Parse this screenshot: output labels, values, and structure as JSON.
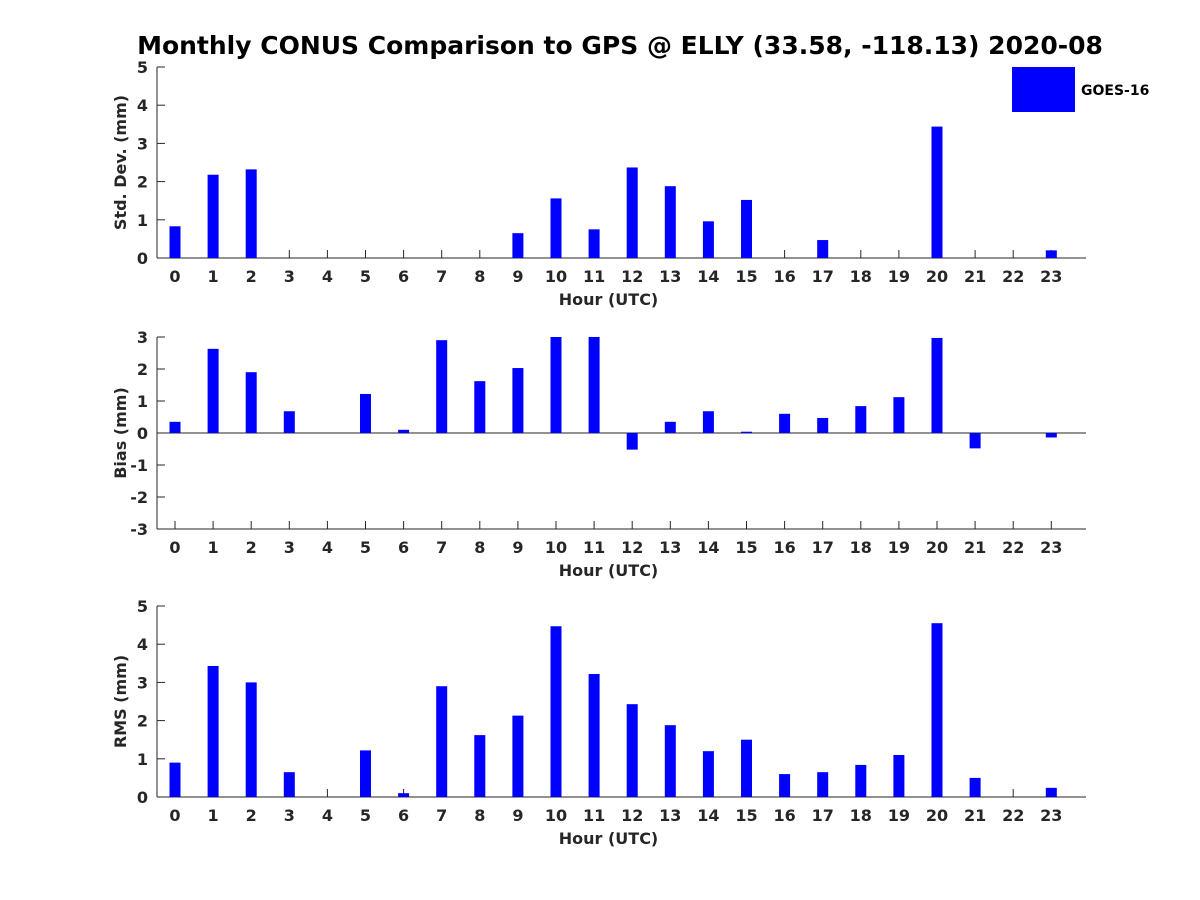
{
  "title": "Monthly CONUS Comparison to GPS @ ELLY (33.58, -118.13) 2020-08",
  "legend": {
    "label": "GOES-16",
    "color": "#0000ff"
  },
  "chart_data": [
    {
      "type": "bar",
      "name": "stddev",
      "xlabel": "Hour (UTC)",
      "ylabel": "Std. Dev. (mm)",
      "ylim": [
        0,
        5
      ],
      "yticks": [
        0,
        1,
        2,
        3,
        4,
        5
      ],
      "categories": [
        "0",
        "1",
        "2",
        "3",
        "4",
        "5",
        "6",
        "7",
        "8",
        "9",
        "10",
        "11",
        "12",
        "13",
        "14",
        "15",
        "16",
        "17",
        "18",
        "19",
        "20",
        "21",
        "22",
        "23"
      ],
      "series": [
        {
          "name": "GOES-16",
          "values": [
            0.83,
            2.18,
            2.32,
            0,
            0,
            0,
            0,
            0,
            0,
            0.65,
            1.56,
            0.75,
            2.37,
            1.88,
            0.96,
            1.52,
            0,
            0.47,
            0,
            0,
            3.44,
            0,
            0,
            0.2
          ]
        }
      ]
    },
    {
      "type": "bar",
      "name": "bias",
      "xlabel": "Hour (UTC)",
      "ylabel": "Bias (mm)",
      "ylim": [
        -3,
        3
      ],
      "yticks": [
        -3,
        -2,
        -1,
        0,
        1,
        2,
        3
      ],
      "zero_line": true,
      "categories": [
        "0",
        "1",
        "2",
        "3",
        "4",
        "5",
        "6",
        "7",
        "8",
        "9",
        "10",
        "11",
        "12",
        "13",
        "14",
        "15",
        "16",
        "17",
        "18",
        "19",
        "20",
        "21",
        "22",
        "23"
      ],
      "series": [
        {
          "name": "GOES-16",
          "values": [
            0.35,
            2.63,
            1.9,
            0.68,
            0,
            1.22,
            0.1,
            2.9,
            1.62,
            2.03,
            3.0,
            3.0,
            -0.52,
            0.35,
            0.68,
            0.04,
            0.6,
            0.47,
            0.84,
            1.12,
            2.97,
            -0.48,
            0,
            -0.14
          ]
        }
      ]
    },
    {
      "type": "bar",
      "name": "rms",
      "xlabel": "Hour (UTC)",
      "ylabel": "RMS (mm)",
      "ylim": [
        0,
        5
      ],
      "yticks": [
        0,
        1,
        2,
        3,
        4,
        5
      ],
      "categories": [
        "0",
        "1",
        "2",
        "3",
        "4",
        "5",
        "6",
        "7",
        "8",
        "9",
        "10",
        "11",
        "12",
        "13",
        "14",
        "15",
        "16",
        "17",
        "18",
        "19",
        "20",
        "21",
        "22",
        "23"
      ],
      "series": [
        {
          "name": "GOES-16",
          "values": [
            0.9,
            3.43,
            3.0,
            0.65,
            0,
            1.22,
            0.1,
            2.9,
            1.62,
            2.13,
            4.47,
            3.22,
            2.43,
            1.88,
            1.2,
            1.5,
            0.6,
            0.65,
            0.84,
            1.1,
            4.55,
            0.5,
            0,
            0.24
          ]
        }
      ]
    }
  ]
}
